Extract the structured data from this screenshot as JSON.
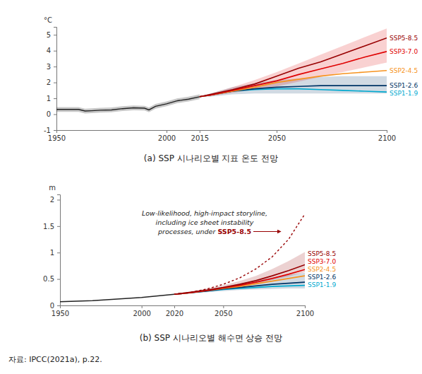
{
  "chart_data": [
    {
      "type": "line",
      "title": "(a) SSP 시나리오별 지표 온도 전망",
      "ylabel": "°C",
      "xlim": [
        1950,
        2100
      ],
      "xticks": [
        1950,
        2000,
        2015,
        2050,
        2100
      ],
      "ylim": [
        -1,
        5.5
      ],
      "yticks": [
        -1,
        0,
        1,
        2,
        3,
        4,
        5
      ],
      "grid": false,
      "legend": "right",
      "series": [
        {
          "color": "#222222",
          "x": [
            1950,
            1955,
            1960,
            1963,
            1966,
            1970,
            1975,
            1980,
            1985,
            1990,
            1992,
            1995,
            2000,
            2005,
            2010,
            2015
          ],
          "values": [
            0.3,
            0.3,
            0.3,
            0.2,
            0.22,
            0.25,
            0.27,
            0.35,
            0.4,
            0.38,
            0.27,
            0.5,
            0.65,
            0.85,
            0.95,
            1.1
          ],
          "lower": [
            0.15,
            0.15,
            0.15,
            0.05,
            0.07,
            0.1,
            0.12,
            0.2,
            0.25,
            0.23,
            0.12,
            0.35,
            0.5,
            0.7,
            0.8,
            0.95
          ],
          "upper": [
            0.45,
            0.45,
            0.45,
            0.35,
            0.37,
            0.4,
            0.42,
            0.5,
            0.55,
            0.53,
            0.42,
            0.65,
            0.8,
            1.0,
            1.1,
            1.25
          ]
        },
        {
          "name": "SSP1-1.9",
          "color": "#00a9cf",
          "x": [
            2015,
            2020,
            2030,
            2040,
            2050,
            2060,
            2070,
            2080,
            2090,
            2100
          ],
          "values": [
            1.1,
            1.2,
            1.45,
            1.55,
            1.6,
            1.6,
            1.55,
            1.5,
            1.45,
            1.4
          ]
        },
        {
          "name": "SSP1-2.6",
          "color": "#003466",
          "x": [
            2015,
            2020,
            2030,
            2040,
            2050,
            2060,
            2070,
            2080,
            2090,
            2100
          ],
          "values": [
            1.1,
            1.2,
            1.45,
            1.6,
            1.7,
            1.75,
            1.8,
            1.8,
            1.8,
            1.8
          ],
          "lower": [
            1.1,
            1.1,
            1.25,
            1.3,
            1.3,
            1.3,
            1.3,
            1.3,
            1.3,
            1.3
          ],
          "upper": [
            1.1,
            1.3,
            1.7,
            1.95,
            2.15,
            2.25,
            2.35,
            2.4,
            2.4,
            2.4
          ]
        },
        {
          "name": "SSP2-4.5",
          "color": "#f69320",
          "x": [
            2015,
            2020,
            2030,
            2040,
            2050,
            2060,
            2070,
            2080,
            2090,
            2100
          ],
          "values": [
            1.1,
            1.2,
            1.45,
            1.7,
            2.0,
            2.2,
            2.4,
            2.55,
            2.65,
            2.75
          ]
        },
        {
          "name": "SSP3-7.0",
          "color": "#df0000",
          "x": [
            2015,
            2020,
            2030,
            2040,
            2050,
            2060,
            2070,
            2080,
            2090,
            2100
          ],
          "values": [
            1.1,
            1.2,
            1.5,
            1.8,
            2.1,
            2.5,
            2.85,
            3.2,
            3.6,
            3.95
          ],
          "lower": [
            1.1,
            1.15,
            1.35,
            1.55,
            1.75,
            2.05,
            2.35,
            2.65,
            2.95,
            3.25
          ],
          "upper": [
            1.1,
            1.3,
            1.7,
            2.15,
            2.65,
            3.2,
            3.75,
            4.3,
            4.85,
            5.4
          ]
        },
        {
          "name": "SSP5-8.5",
          "color": "#980002",
          "x": [
            2015,
            2020,
            2030,
            2040,
            2050,
            2060,
            2070,
            2080,
            2090,
            2100
          ],
          "values": [
            1.1,
            1.25,
            1.55,
            1.9,
            2.4,
            2.9,
            3.3,
            3.8,
            4.3,
            4.8
          ]
        }
      ]
    },
    {
      "type": "line",
      "title": "(b) SSP 시나리오별 해수면 상승 전망",
      "ylabel": "m",
      "xlim": [
        1950,
        2100
      ],
      "xticks": [
        1950,
        2000,
        2020,
        2050,
        2100
      ],
      "ylim": [
        0,
        2.1
      ],
      "yticks": [
        0,
        0.5,
        1,
        1.5,
        2
      ],
      "grid": false,
      "legend": "right",
      "annotation": {
        "lines": [
          "Low-likelihood, high-impact storyline,",
          "including ice sheet instability",
          "processes, under"
        ],
        "highlight": "SSP5-8.5"
      },
      "series": [
        {
          "color": "#222222",
          "x": [
            1950,
            1960,
            1970,
            1980,
            1990,
            2000,
            2010,
            2020
          ],
          "values": [
            0.07,
            0.08,
            0.09,
            0.11,
            0.13,
            0.15,
            0.18,
            0.21
          ]
        },
        {
          "name": "SSP1-1.9",
          "color": "#00a9cf",
          "x": [
            2020,
            2030,
            2040,
            2050,
            2060,
            2070,
            2080,
            2090,
            2100
          ],
          "values": [
            0.21,
            0.24,
            0.27,
            0.3,
            0.32,
            0.34,
            0.36,
            0.37,
            0.38
          ]
        },
        {
          "name": "SSP1-2.6",
          "color": "#003466",
          "x": [
            2020,
            2030,
            2040,
            2050,
            2060,
            2070,
            2080,
            2090,
            2100
          ],
          "values": [
            0.21,
            0.24,
            0.27,
            0.31,
            0.34,
            0.37,
            0.4,
            0.42,
            0.44
          ],
          "lower": [
            0.21,
            0.22,
            0.25,
            0.27,
            0.29,
            0.3,
            0.31,
            0.32,
            0.32
          ],
          "upper": [
            0.21,
            0.25,
            0.3,
            0.35,
            0.41,
            0.47,
            0.53,
            0.58,
            0.62
          ]
        },
        {
          "name": "SSP2-4.5",
          "color": "#f69320",
          "x": [
            2020,
            2030,
            2040,
            2050,
            2060,
            2070,
            2080,
            2090,
            2100
          ],
          "values": [
            0.21,
            0.24,
            0.28,
            0.32,
            0.36,
            0.41,
            0.46,
            0.51,
            0.56
          ]
        },
        {
          "name": "SSP3-7.0",
          "color": "#df0000",
          "x": [
            2020,
            2030,
            2040,
            2050,
            2060,
            2070,
            2080,
            2090,
            2100
          ],
          "values": [
            0.21,
            0.24,
            0.28,
            0.33,
            0.38,
            0.44,
            0.51,
            0.59,
            0.68
          ]
        },
        {
          "name": "SSP5-8.5",
          "color": "#980002",
          "x": [
            2020,
            2030,
            2040,
            2050,
            2060,
            2070,
            2080,
            2090,
            2100
          ],
          "values": [
            0.21,
            0.25,
            0.29,
            0.34,
            0.4,
            0.47,
            0.56,
            0.66,
            0.77
          ],
          "lower": [
            0.21,
            0.23,
            0.27,
            0.31,
            0.36,
            0.41,
            0.48,
            0.55,
            0.63
          ],
          "upper": [
            0.21,
            0.26,
            0.32,
            0.38,
            0.46,
            0.56,
            0.69,
            0.84,
            1.01
          ]
        },
        {
          "color": "#980002",
          "line_style": "dashed",
          "x": [
            2020,
            2030,
            2040,
            2050,
            2060,
            2070,
            2080,
            2090,
            2100
          ],
          "values": [
            0.21,
            0.25,
            0.31,
            0.4,
            0.52,
            0.69,
            0.92,
            1.25,
            1.73
          ]
        }
      ]
    }
  ],
  "source": "자료: IPCC(2021a), p.22."
}
